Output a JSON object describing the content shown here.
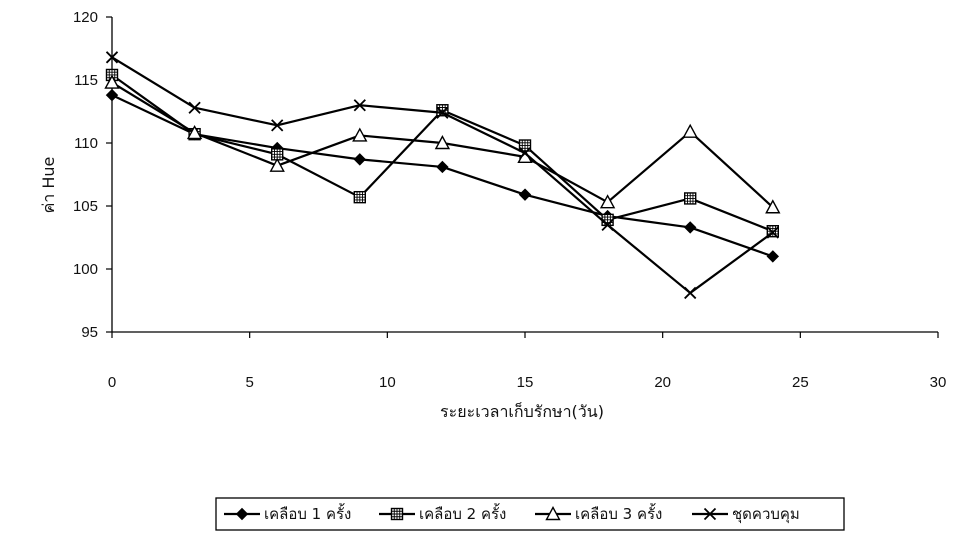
{
  "chart_data": {
    "type": "line",
    "title": "",
    "xlabel": "ระยะเวลาเก็บรักษา(วัน)",
    "ylabel": "ค่า Hue",
    "xlim": [
      0,
      30
    ],
    "ylim": [
      95,
      120
    ],
    "x_ticks": [
      "0",
      "5",
      "10",
      "15",
      "20",
      "25",
      "30"
    ],
    "y_ticks": [
      "95",
      "100",
      "105",
      "110",
      "115",
      "120"
    ],
    "grid": false,
    "legend_position": "bottom",
    "series": [
      {
        "name": "เคลือบ 1 ครั้ง",
        "marker": "diamond",
        "x": [
          0,
          3,
          6,
          9,
          12,
          15,
          18,
          21,
          24
        ],
        "y": [
          113.8,
          110.7,
          109.6,
          108.7,
          108.1,
          105.9,
          104.2,
          103.3,
          101.0
        ]
      },
      {
        "name": "เคลือบ 2 ครั้ง",
        "marker": "square",
        "x": [
          0,
          3,
          6,
          9,
          12,
          15,
          18,
          21,
          24
        ],
        "y": [
          115.4,
          110.7,
          109.1,
          105.7,
          112.6,
          109.8,
          103.9,
          105.6,
          103.0
        ]
      },
      {
        "name": "เคลือบ 3 ครั้ง",
        "marker": "triangle",
        "x": [
          0,
          3,
          6,
          9,
          12,
          15,
          18,
          21,
          24
        ],
        "y": [
          114.8,
          110.8,
          108.2,
          110.6,
          110.0,
          108.9,
          105.3,
          110.9,
          104.9
        ]
      },
      {
        "name": "ชุดควบคุม",
        "marker": "x",
        "x": [
          0,
          3,
          6,
          9,
          12,
          15,
          18,
          21,
          24
        ],
        "y": [
          116.8,
          112.8,
          111.4,
          113.0,
          112.4,
          109.2,
          103.5,
          98.1,
          102.9
        ]
      }
    ]
  }
}
